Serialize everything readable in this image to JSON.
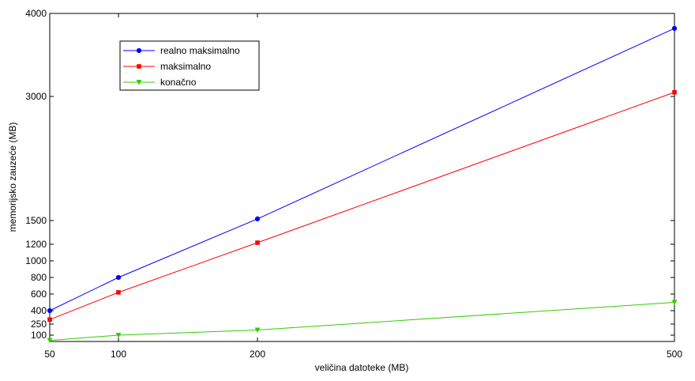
{
  "chart_data": {
    "type": "line",
    "title": "",
    "xlabel": "veličina datoteke (MB)",
    "ylabel": "memorijsko zauzeće (MB)",
    "xlim": [
      50,
      500
    ],
    "ylim": [
      40,
      4000
    ],
    "xticks": [
      50,
      100,
      200,
      500
    ],
    "yticks": [
      100,
      250,
      400,
      600,
      800,
      1000,
      1200,
      1500,
      3000,
      4000
    ],
    "grid": false,
    "legend_position": "top-left",
    "x": [
      50,
      100,
      200,
      500
    ],
    "series": [
      {
        "name": "realno maksimalno",
        "color": "#0000ff",
        "marker": "circle",
        "values": [
          400,
          800,
          1520,
          3820
        ]
      },
      {
        "name": "maksimalno",
        "color": "#ff0000",
        "marker": "square",
        "values": [
          300,
          620,
          1220,
          3050
        ]
      },
      {
        "name": "konačno",
        "color": "#33cc00",
        "marker": "triangle",
        "values": [
          50,
          100,
          170,
          500
        ]
      }
    ]
  }
}
